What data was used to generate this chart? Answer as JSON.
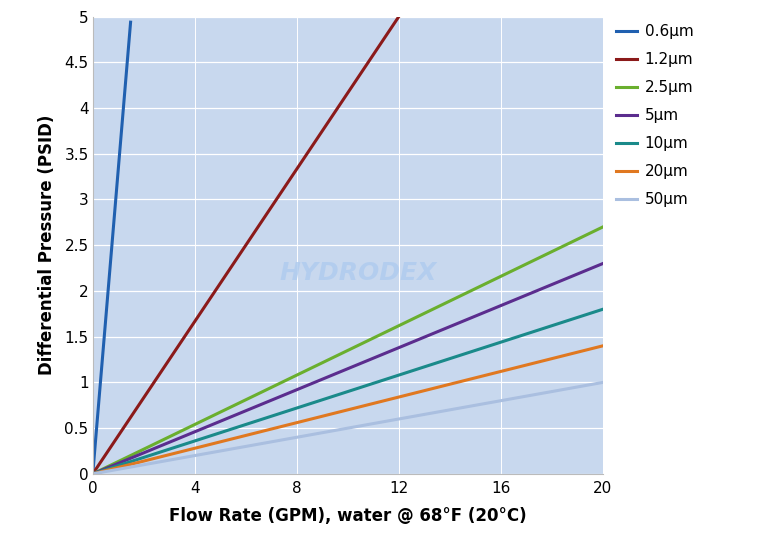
{
  "series": [
    {
      "label": "0.6μm",
      "color": "#2060B0",
      "slope": 3.33
    },
    {
      "label": "1.2μm",
      "color": "#8B1A1A",
      "slope": 0.4167
    },
    {
      "label": "2.5μm",
      "color": "#6AAF2E",
      "slope": 0.135
    },
    {
      "label": "5μm",
      "color": "#5B2D8E",
      "slope": 0.115
    },
    {
      "label": "10μm",
      "color": "#1A8A8A",
      "slope": 0.09
    },
    {
      "label": "20μm",
      "color": "#E07820",
      "slope": 0.07
    },
    {
      "label": "50μm",
      "color": "#AABFE0",
      "slope": 0.05
    }
  ],
  "xlim": [
    0,
    20
  ],
  "ylim": [
    0,
    5
  ],
  "xticks": [
    0,
    4,
    8,
    12,
    16,
    20
  ],
  "yticks": [
    0,
    0.5,
    1.0,
    1.5,
    2.0,
    2.5,
    3.0,
    3.5,
    4.0,
    4.5,
    5.0
  ],
  "xlabel": "Flow Rate (GPM), water @ 68°F (20°C)",
  "ylabel": "Differential Pressure (PSID)",
  "plot_bg_color": "#C8D8EE",
  "outer_bg_color": "#FFFFFF",
  "grid_color": "#DDEAFF",
  "line_width": 2.2,
  "watermark": "HYDRODEX",
  "watermark_color": "#B0CCEE",
  "figsize": [
    7.73,
    5.51
  ],
  "dpi": 100
}
